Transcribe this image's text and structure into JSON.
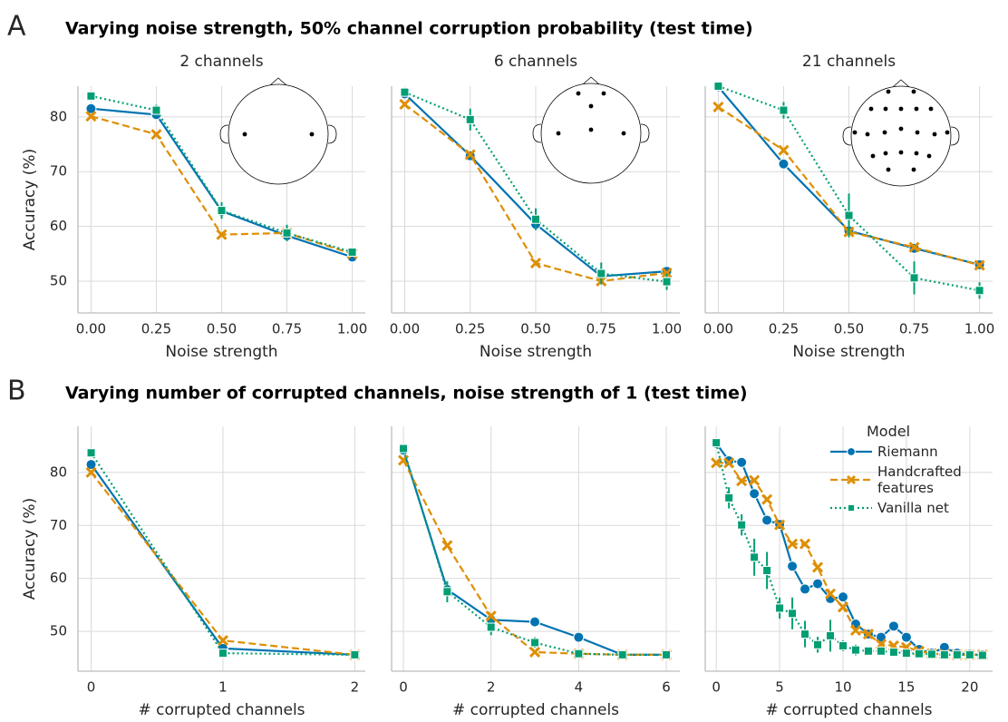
{
  "sections": [
    {
      "label": "A",
      "title": "Varying noise strength, 50% channel corruption probability (test time)"
    },
    {
      "label": "B",
      "title": "Varying number of corrupted channels, noise strength of 1 (test time)"
    }
  ],
  "chart_data": [
    {
      "type": "line",
      "title": "2 channels",
      "xlabel": "Noise strength",
      "ylabel": "Accuracy (%)",
      "ytick_labels": true,
      "grid": true,
      "x": [
        0,
        0.25,
        0.5,
        0.75,
        1
      ],
      "xlim": [
        -0.05,
        1.05
      ],
      "ylim": [
        44.2,
        85.6
      ],
      "xticks": [
        {
          "value": 0,
          "label": "0.00"
        },
        {
          "value": 0.25,
          "label": "0.25"
        },
        {
          "value": 0.5,
          "label": "0.50"
        },
        {
          "value": 0.75,
          "label": "0.75"
        },
        {
          "value": 1,
          "label": "1.00"
        }
      ],
      "yticks": [
        50,
        60,
        70,
        80
      ],
      "series": [
        {
          "name": "Riemann",
          "color": "#0173b2",
          "linestyle": "solid",
          "marker": "circle",
          "values": [
            81.5,
            80.4,
            62.8,
            58.3,
            54.4
          ]
        },
        {
          "name": "Handcrafted features",
          "color": "#de8f05",
          "linestyle": "dashed",
          "marker": "x",
          "values": [
            80.1,
            76.8,
            58.5,
            58.8,
            55.0
          ]
        },
        {
          "name": "Vanilla net",
          "color": "#029e73",
          "linestyle": "dotted",
          "marker": "square",
          "values": [
            83.8,
            81.2,
            62.9,
            58.8,
            55.3
          ],
          "errors": [
            0.5,
            1,
            1.5,
            1.5,
            0.5
          ]
        }
      ]
    },
    {
      "type": "line",
      "title": "6 channels",
      "xlabel": "Noise strength",
      "ytick_labels": false,
      "grid": true,
      "x": [
        0,
        0.25,
        0.5,
        0.75,
        1
      ],
      "xlim": [
        -0.05,
        1.05
      ],
      "ylim": [
        44.2,
        85.6
      ],
      "xticks": [
        {
          "value": 0,
          "label": "0.00"
        },
        {
          "value": 0.25,
          "label": "0.25"
        },
        {
          "value": 0.5,
          "label": "0.50"
        },
        {
          "value": 0.75,
          "label": "0.75"
        },
        {
          "value": 1,
          "label": "1.00"
        }
      ],
      "yticks": [
        50,
        60,
        70,
        80
      ],
      "series": [
        {
          "name": "Riemann",
          "color": "#0173b2",
          "linestyle": "solid",
          "marker": "circle",
          "values": [
            84.2,
            72.9,
            60.4,
            50.9,
            51.8
          ]
        },
        {
          "name": "Handcrafted features",
          "color": "#de8f05",
          "linestyle": "dashed",
          "marker": "x",
          "values": [
            82.3,
            73.1,
            53.3,
            50.0,
            51.5
          ]
        },
        {
          "name": "Vanilla net",
          "color": "#029e73",
          "linestyle": "dotted",
          "marker": "square",
          "values": [
            84.5,
            79.5,
            61.3,
            51.4,
            49.9
          ],
          "errors": [
            0.5,
            2,
            2,
            2,
            1.5
          ]
        }
      ]
    },
    {
      "type": "line",
      "title": "21 channels",
      "xlabel": "Noise strength",
      "ytick_labels": false,
      "grid": true,
      "x": [
        0,
        0.25,
        0.5,
        0.75,
        1
      ],
      "xlim": [
        -0.05,
        1.05
      ],
      "ylim": [
        44.2,
        85.6
      ],
      "xticks": [
        {
          "value": 0,
          "label": "0.00"
        },
        {
          "value": 0.25,
          "label": "0.25"
        },
        {
          "value": 0.5,
          "label": "0.50"
        },
        {
          "value": 0.75,
          "label": "0.75"
        },
        {
          "value": 1,
          "label": "1.00"
        }
      ],
      "yticks": [
        50,
        60,
        70,
        80
      ],
      "series": [
        {
          "name": "Riemann",
          "color": "#0173b2",
          "linestyle": "solid",
          "marker": "circle",
          "values": [
            85.5,
            71.4,
            59.2,
            56.0,
            53.0
          ]
        },
        {
          "name": "Handcrafted features",
          "color": "#de8f05",
          "linestyle": "dashed",
          "marker": "x",
          "values": [
            81.8,
            73.9,
            59.0,
            56.2,
            52.9
          ]
        },
        {
          "name": "Vanilla net",
          "color": "#029e73",
          "linestyle": "dotted",
          "marker": "square",
          "values": [
            85.6,
            81.2,
            62.0,
            50.6,
            48.3
          ],
          "errors": [
            0.5,
            1.5,
            4,
            3,
            1.5
          ]
        }
      ]
    },
    {
      "type": "line",
      "xlabel": "# corrupted channels",
      "ylabel": "Accuracy (%)",
      "ytick_labels": true,
      "grid": true,
      "x": [
        0,
        1,
        2
      ],
      "xlim": [
        -0.1,
        2.08
      ],
      "ylim": [
        42.5,
        88.7
      ],
      "xticks": [
        0,
        1,
        2
      ],
      "yticks": [
        50,
        60,
        70,
        80
      ],
      "series": [
        {
          "name": "Riemann",
          "color": "#0173b2",
          "linestyle": "solid",
          "marker": "circle",
          "values": [
            81.5,
            46.8,
            45.6
          ]
        },
        {
          "name": "Handcrafted features",
          "color": "#de8f05",
          "linestyle": "dashed",
          "marker": "x",
          "values": [
            80.0,
            48.3,
            45.6
          ]
        },
        {
          "name": "Vanilla net",
          "color": "#029e73",
          "linestyle": "dotted",
          "marker": "square",
          "values": [
            83.7,
            45.9,
            45.6
          ],
          "errors": [
            0.4,
            0.5,
            0.2
          ]
        }
      ]
    },
    {
      "type": "line",
      "xlabel": "# corrupted channels",
      "ytick_labels": false,
      "grid": true,
      "x": [
        0,
        1,
        2,
        3,
        4,
        5,
        6
      ],
      "xlim": [
        -0.27,
        6.31
      ],
      "ylim": [
        42.5,
        88.7
      ],
      "xticks": [
        0,
        2,
        4,
        6
      ],
      "yticks": [
        50,
        60,
        70,
        80
      ],
      "series": [
        {
          "name": "Riemann",
          "color": "#0173b2",
          "linestyle": "solid",
          "marker": "circle",
          "values": [
            84.2,
            57.9,
            52.2,
            51.8,
            48.9,
            45.6,
            45.6
          ]
        },
        {
          "name": "Handcrafted features",
          "color": "#de8f05",
          "linestyle": "dashed",
          "marker": "x",
          "values": [
            82.3,
            66.2,
            52.9,
            46.1,
            45.8,
            45.6,
            45.6
          ]
        },
        {
          "name": "Vanilla net",
          "color": "#029e73",
          "linestyle": "dotted",
          "marker": "square",
          "values": [
            84.5,
            57.5,
            50.8,
            47.9,
            45.8,
            45.6,
            45.6
          ],
          "errors": [
            0.5,
            2,
            1.5,
            1,
            0.4,
            0.2,
            0.2
          ]
        }
      ]
    },
    {
      "type": "line",
      "xlabel": "# corrupted channels",
      "ytick_labels": false,
      "grid": true,
      "legend": {
        "title": "Model",
        "loc": "upper right"
      },
      "x": [
        0,
        1,
        2,
        3,
        4,
        5,
        6,
        7,
        8,
        9,
        10,
        11,
        12,
        13,
        14,
        15,
        16,
        17,
        18,
        19,
        20,
        21
      ],
      "xlim": [
        -0.87,
        21.8
      ],
      "ylim": [
        42.5,
        88.7
      ],
      "xticks": [
        0,
        5,
        10,
        15,
        20
      ],
      "yticks": [
        50,
        60,
        70,
        80
      ],
      "series": [
        {
          "name": "Riemann",
          "color": "#0173b2",
          "linestyle": "solid",
          "marker": "circle",
          "values": [
            85.5,
            82.2,
            81.9,
            76.0,
            71.0,
            70.2,
            62.3,
            58.0,
            59.0,
            56.2,
            56.5,
            51.4,
            49.5,
            48.9,
            51.0,
            48.9,
            46.6,
            45.9,
            47.0,
            45.9,
            45.7,
            45.6
          ]
        },
        {
          "name": "Handcrafted features",
          "color": "#de8f05",
          "linestyle": "dashed",
          "marker": "x",
          "values": [
            81.8,
            81.8,
            78.4,
            78.5,
            74.9,
            70.1,
            66.5,
            66.5,
            62.1,
            57.1,
            54.6,
            50.2,
            49.5,
            47.6,
            47.3,
            47.0,
            46.3,
            45.8,
            45.7,
            45.6,
            45.6,
            45.6
          ]
        },
        {
          "name": "Vanilla net",
          "color": "#029e73",
          "linestyle": "dotted",
          "marker": "square",
          "values": [
            85.6,
            75.2,
            70.1,
            64.0,
            61.5,
            54.4,
            53.4,
            49.5,
            47.5,
            49.2,
            47.3,
            46.5,
            46.3,
            46.3,
            46.1,
            45.9,
            45.8,
            45.7,
            45.6,
            45.6,
            45.6,
            45.5
          ],
          "errors": [
            0.5,
            2,
            2,
            3.5,
            3.5,
            2,
            3,
            2.5,
            1.5,
            3,
            1,
            1,
            0.8,
            0.8,
            0.7,
            0.5,
            0.5,
            0.4,
            0.3,
            0.3,
            0.3,
            0.3
          ]
        }
      ]
    }
  ]
}
